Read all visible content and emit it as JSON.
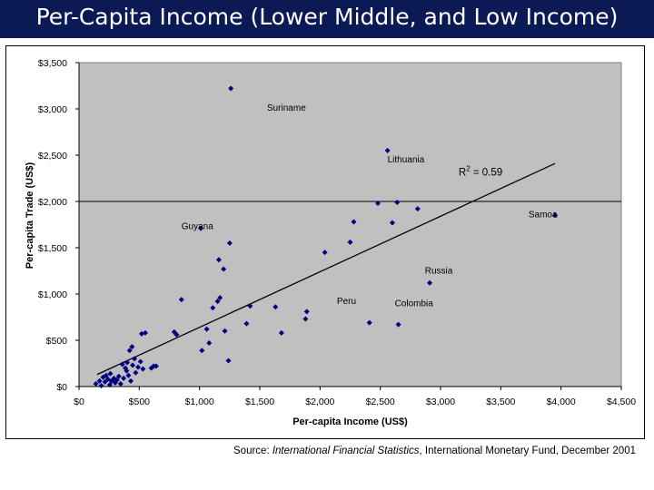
{
  "title": "Per-Capita Income (Lower Middle, and Low Income)",
  "source": {
    "prefix": "Source: ",
    "publication": "International Financial Statistics",
    "suffix": ", International Monetary Fund, December 2001"
  },
  "colors": {
    "title_bar": "#0b1a55",
    "plot_bg": "#c0c0c0",
    "marker": "#000080"
  },
  "chart_data": {
    "type": "scatter",
    "xlabel": "Per-capita Income (US$)",
    "ylabel": "Per-capita Trade (US$)",
    "xlim": [
      0,
      4500
    ],
    "ylim": [
      0,
      3500
    ],
    "x_ticks": [
      0,
      500,
      1000,
      1500,
      2000,
      2500,
      3000,
      3500,
      4000,
      4500
    ],
    "x_tick_labels": [
      "$0",
      "$500",
      "$1,000",
      "$1,500",
      "$2,000",
      "$2,500",
      "$3,000",
      "$3,500",
      "$4,000",
      "$4,500"
    ],
    "y_ticks": [
      0,
      500,
      1000,
      1500,
      2000,
      2500,
      3000,
      3500
    ],
    "y_tick_labels": [
      "$0",
      "$500",
      "$1,000",
      "$1,500",
      "$2,000",
      "$2,500",
      "$3,000",
      "$3,500"
    ],
    "reference_line_y": 2000,
    "trendline": {
      "x": [
        150,
        3950
      ],
      "y": [
        130,
        2410
      ],
      "r2_label": "R",
      "r2_sup": "2",
      "r2_value": " = 0.59"
    },
    "grid": false,
    "points": [
      [
        140,
        30
      ],
      [
        170,
        60
      ],
      [
        185,
        10
      ],
      [
        200,
        100
      ],
      [
        215,
        50
      ],
      [
        225,
        120
      ],
      [
        240,
        80
      ],
      [
        255,
        20
      ],
      [
        260,
        140
      ],
      [
        270,
        60
      ],
      [
        290,
        90
      ],
      [
        300,
        40
      ],
      [
        315,
        70
      ],
      [
        330,
        110
      ],
      [
        345,
        30
      ],
      [
        360,
        240
      ],
      [
        370,
        90
      ],
      [
        385,
        200
      ],
      [
        395,
        170
      ],
      [
        400,
        260
      ],
      [
        410,
        120
      ],
      [
        420,
        390
      ],
      [
        430,
        60
      ],
      [
        440,
        430
      ],
      [
        445,
        230
      ],
      [
        460,
        300
      ],
      [
        470,
        150
      ],
      [
        490,
        210
      ],
      [
        510,
        270
      ],
      [
        520,
        570
      ],
      [
        530,
        190
      ],
      [
        550,
        580
      ],
      [
        600,
        200
      ],
      [
        620,
        220
      ],
      [
        640,
        220
      ],
      [
        790,
        590
      ],
      [
        810,
        560
      ],
      [
        850,
        940
      ],
      [
        1010,
        1710
      ],
      [
        1020,
        390
      ],
      [
        1060,
        620
      ],
      [
        1080,
        470
      ],
      [
        1110,
        850
      ],
      [
        1150,
        920
      ],
      [
        1160,
        1370
      ],
      [
        1170,
        960
      ],
      [
        1200,
        1270
      ],
      [
        1210,
        600
      ],
      [
        1240,
        280
      ],
      [
        1250,
        1550
      ],
      [
        1390,
        680
      ],
      [
        1420,
        870
      ],
      [
        1630,
        860
      ],
      [
        1680,
        580
      ],
      [
        1880,
        730
      ],
      [
        1890,
        810
      ],
      [
        2040,
        1450
      ],
      [
        2250,
        1560
      ],
      [
        2280,
        1780
      ],
      [
        2410,
        690
      ],
      [
        2480,
        1980
      ],
      [
        2560,
        2550
      ],
      [
        2600,
        1770
      ],
      [
        2640,
        1990
      ],
      [
        2650,
        670
      ],
      [
        2810,
        1920
      ],
      [
        2910,
        1120
      ],
      [
        3950,
        1850
      ],
      [
        1260,
        3220
      ]
    ],
    "annotations": [
      {
        "text": "Suriname",
        "x": 1560,
        "y": 2980
      },
      {
        "text": "Lithuania",
        "x": 2560,
        "y": 2420
      },
      {
        "text": "Samoa",
        "x": 3730,
        "y": 1830
      },
      {
        "text": "Guyana",
        "x": 850,
        "y": 1700
      },
      {
        "text": "Russia",
        "x": 2870,
        "y": 1220
      },
      {
        "text": "Peru",
        "x": 2140,
        "y": 890
      },
      {
        "text": "Colombia",
        "x": 2620,
        "y": 870
      }
    ]
  }
}
